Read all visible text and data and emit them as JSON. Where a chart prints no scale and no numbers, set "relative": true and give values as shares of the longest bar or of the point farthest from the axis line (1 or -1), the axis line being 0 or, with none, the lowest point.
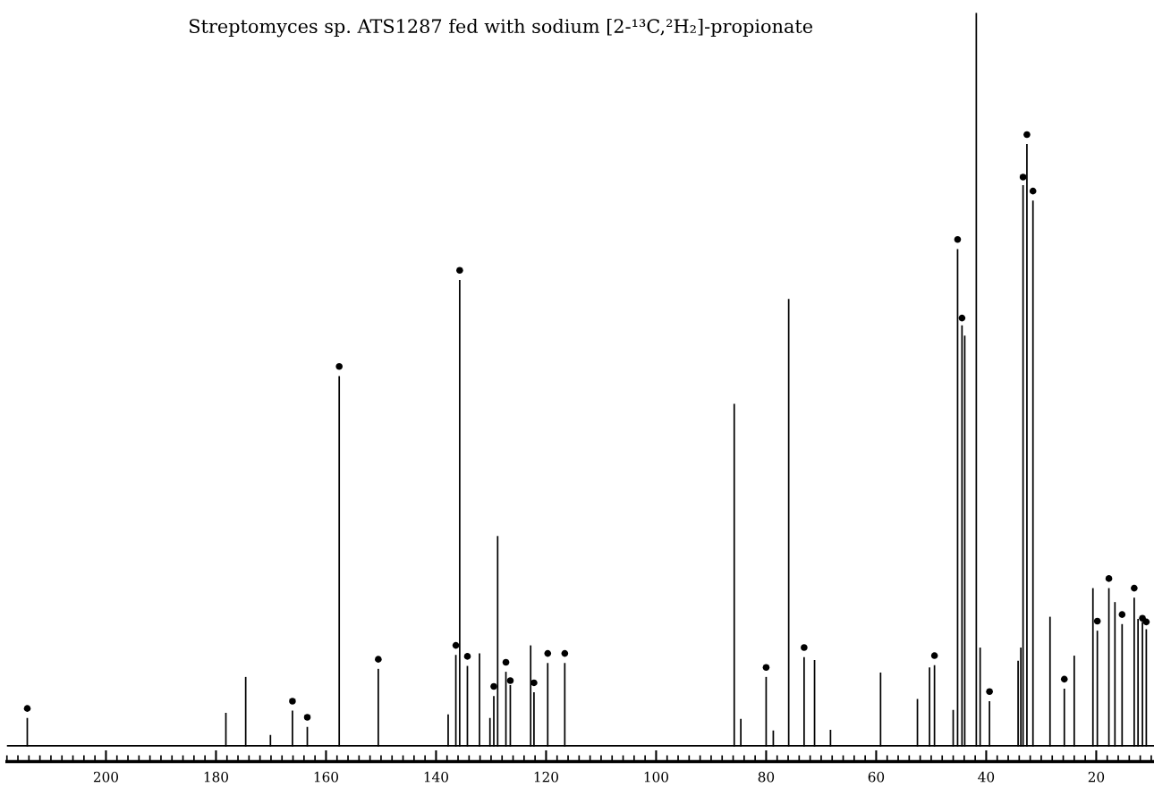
{
  "chart_data": {
    "type": "bar",
    "title": "Streptomyces sp. ATS1287 fed with sodium [2-¹³C,²H₂]-propionate",
    "relative": true,
    "tick_labels": "x",
    "xlim": [
      218,
      9.5
    ],
    "xticks": [
      {
        "value": 218,
        "label": null
      },
      {
        "value": 216,
        "label": null
      },
      {
        "value": 214,
        "label": null
      },
      {
        "value": 212,
        "label": null
      },
      {
        "value": 210,
        "label": null
      },
      {
        "value": 208,
        "label": null
      },
      {
        "value": 206,
        "label": null
      },
      {
        "value": 204,
        "label": null
      },
      {
        "value": 202,
        "label": null
      },
      200,
      {
        "value": 198,
        "label": null
      },
      {
        "value": 196,
        "label": null
      },
      {
        "value": 194,
        "label": null
      },
      {
        "value": 192,
        "label": null
      },
      {
        "value": 190,
        "label": null
      },
      {
        "value": 188,
        "label": null
      },
      {
        "value": 186,
        "label": null
      },
      {
        "value": 184,
        "label": null
      },
      {
        "value": 182,
        "label": null
      },
      180,
      {
        "value": 178,
        "label": null
      },
      {
        "value": 176,
        "label": null
      },
      {
        "value": 174,
        "label": null
      },
      {
        "value": 172,
        "label": null
      },
      {
        "value": 170,
        "label": null
      },
      {
        "value": 168,
        "label": null
      },
      {
        "value": 166,
        "label": null
      },
      {
        "value": 164,
        "label": null
      },
      {
        "value": 162,
        "label": null
      },
      160,
      {
        "value": 158,
        "label": null
      },
      {
        "value": 156,
        "label": null
      },
      {
        "value": 154,
        "label": null
      },
      {
        "value": 152,
        "label": null
      },
      {
        "value": 150,
        "label": null
      },
      {
        "value": 148,
        "label": null
      },
      {
        "value": 146,
        "label": null
      },
      {
        "value": 144,
        "label": null
      },
      {
        "value": 142,
        "label": null
      },
      140,
      {
        "value": 138,
        "label": null
      },
      {
        "value": 136,
        "label": null
      },
      {
        "value": 134,
        "label": null
      },
      {
        "value": 132,
        "label": null
      },
      {
        "value": 130,
        "label": null
      },
      {
        "value": 128,
        "label": null
      },
      {
        "value": 126,
        "label": null
      },
      {
        "value": 124,
        "label": null
      },
      {
        "value": 122,
        "label": null
      },
      120,
      {
        "value": 118,
        "label": null
      },
      {
        "value": 116,
        "label": null
      },
      {
        "value": 114,
        "label": null
      },
      {
        "value": 112,
        "label": null
      },
      {
        "value": 110,
        "label": null
      },
      {
        "value": 108,
        "label": null
      },
      {
        "value": 106,
        "label": null
      },
      {
        "value": 104,
        "label": null
      },
      {
        "value": 102,
        "label": null
      },
      100,
      {
        "value": 98,
        "label": null
      },
      {
        "value": 96,
        "label": null
      },
      {
        "value": 94,
        "label": null
      },
      {
        "value": 92,
        "label": null
      },
      {
        "value": 90,
        "label": null
      },
      {
        "value": 88,
        "label": null
      },
      {
        "value": 86,
        "label": null
      },
      {
        "value": 84,
        "label": null
      },
      {
        "value": 82,
        "label": null
      },
      80,
      {
        "value": 78,
        "label": null
      },
      {
        "value": 76,
        "label": null
      },
      {
        "value": 74,
        "label": null
      },
      {
        "value": 72,
        "label": null
      },
      {
        "value": 70,
        "label": null
      },
      {
        "value": 68,
        "label": null
      },
      {
        "value": 66,
        "label": null
      },
      {
        "value": 64,
        "label": null
      },
      {
        "value": 62,
        "label": null
      },
      60,
      {
        "value": 58,
        "label": null
      },
      {
        "value": 56,
        "label": null
      },
      {
        "value": 54,
        "label": null
      },
      {
        "value": 52,
        "label": null
      },
      {
        "value": 50,
        "label": null
      },
      {
        "value": 48,
        "label": null
      },
      {
        "value": 46,
        "label": null
      },
      {
        "value": 44,
        "label": null
      },
      {
        "value": 42,
        "label": null
      },
      40,
      {
        "value": 38,
        "label": null
      },
      {
        "value": 36,
        "label": null
      },
      {
        "value": 34,
        "label": null
      },
      {
        "value": 32,
        "label": null
      },
      {
        "value": 30,
        "label": null
      },
      {
        "value": 28,
        "label": null
      },
      {
        "value": 26,
        "label": null
      },
      {
        "value": 24,
        "label": null
      },
      {
        "value": 22,
        "label": null
      },
      20,
      {
        "value": 18,
        "label": null
      },
      {
        "value": 16,
        "label": null
      },
      {
        "value": 14,
        "label": null
      },
      {
        "value": 12,
        "label": null
      },
      {
        "value": 10,
        "label": null
      }
    ],
    "series": [
      {
        "color": "#000000",
        "x": [
          214.3,
          178.2,
          174.6,
          170.1,
          166.1,
          163.4,
          157.6,
          150.5,
          137.8,
          136.4,
          135.7,
          134.3,
          132.1,
          130.2,
          129.5,
          128.8,
          127.3,
          126.5,
          122.8,
          122.2,
          119.7,
          116.6,
          85.8,
          84.6,
          80.0,
          78.7,
          75.9,
          73.1,
          71.2,
          68.3,
          59.2,
          52.5,
          50.3,
          49.4,
          46.0,
          45.2,
          44.4,
          43.9,
          41.8,
          41.1,
          39.4,
          34.2,
          33.7,
          33.3,
          32.6,
          31.5,
          28.4,
          25.8,
          24.0,
          20.6,
          19.8,
          17.7,
          16.6,
          15.3,
          13.1,
          12.4,
          11.6,
          10.9
        ],
        "values": [
          0.039,
          0.046,
          0.095,
          0.016,
          0.049,
          0.027,
          0.505,
          0.106,
          0.044,
          0.125,
          0.636,
          0.11,
          0.127,
          0.039,
          0.069,
          0.287,
          0.102,
          0.084,
          0.138,
          0.074,
          0.114,
          0.114,
          0.467,
          0.038,
          0.095,
          0.022,
          0.61,
          0.122,
          0.118,
          0.023,
          0.101,
          0.065,
          0.108,
          0.111,
          0.05,
          0.678,
          0.574,
          0.56,
          1.0,
          0.135,
          0.062,
          0.117,
          0.135,
          0.765,
          0.821,
          0.744,
          0.177,
          0.079,
          0.124,
          0.216,
          0.158,
          0.216,
          0.197,
          0.167,
          0.203,
          0.174,
          0.17,
          0.16
        ]
      },
      {
        "type": "scatter",
        "marker": "circle",
        "color": "#000000",
        "x": [
          214.3,
          166.1,
          163.4,
          157.6,
          150.5,
          136.4,
          135.7,
          134.3,
          129.5,
          127.3,
          126.5,
          122.2,
          119.7,
          116.6,
          80.0,
          73.1,
          49.4,
          45.2,
          44.4,
          39.4,
          33.3,
          32.6,
          31.5,
          25.8,
          19.8,
          17.7,
          15.3,
          13.1,
          11.6,
          10.9
        ],
        "values": [
          0.052,
          0.062,
          0.04,
          0.518,
          0.119,
          0.138,
          0.649,
          0.123,
          0.082,
          0.115,
          0.09,
          0.087,
          0.127,
          0.127,
          0.108,
          0.135,
          0.124,
          0.691,
          0.584,
          0.075,
          0.776,
          0.834,
          0.757,
          0.092,
          0.171,
          0.229,
          0.18,
          0.216,
          0.175,
          0.17
        ]
      }
    ]
  }
}
